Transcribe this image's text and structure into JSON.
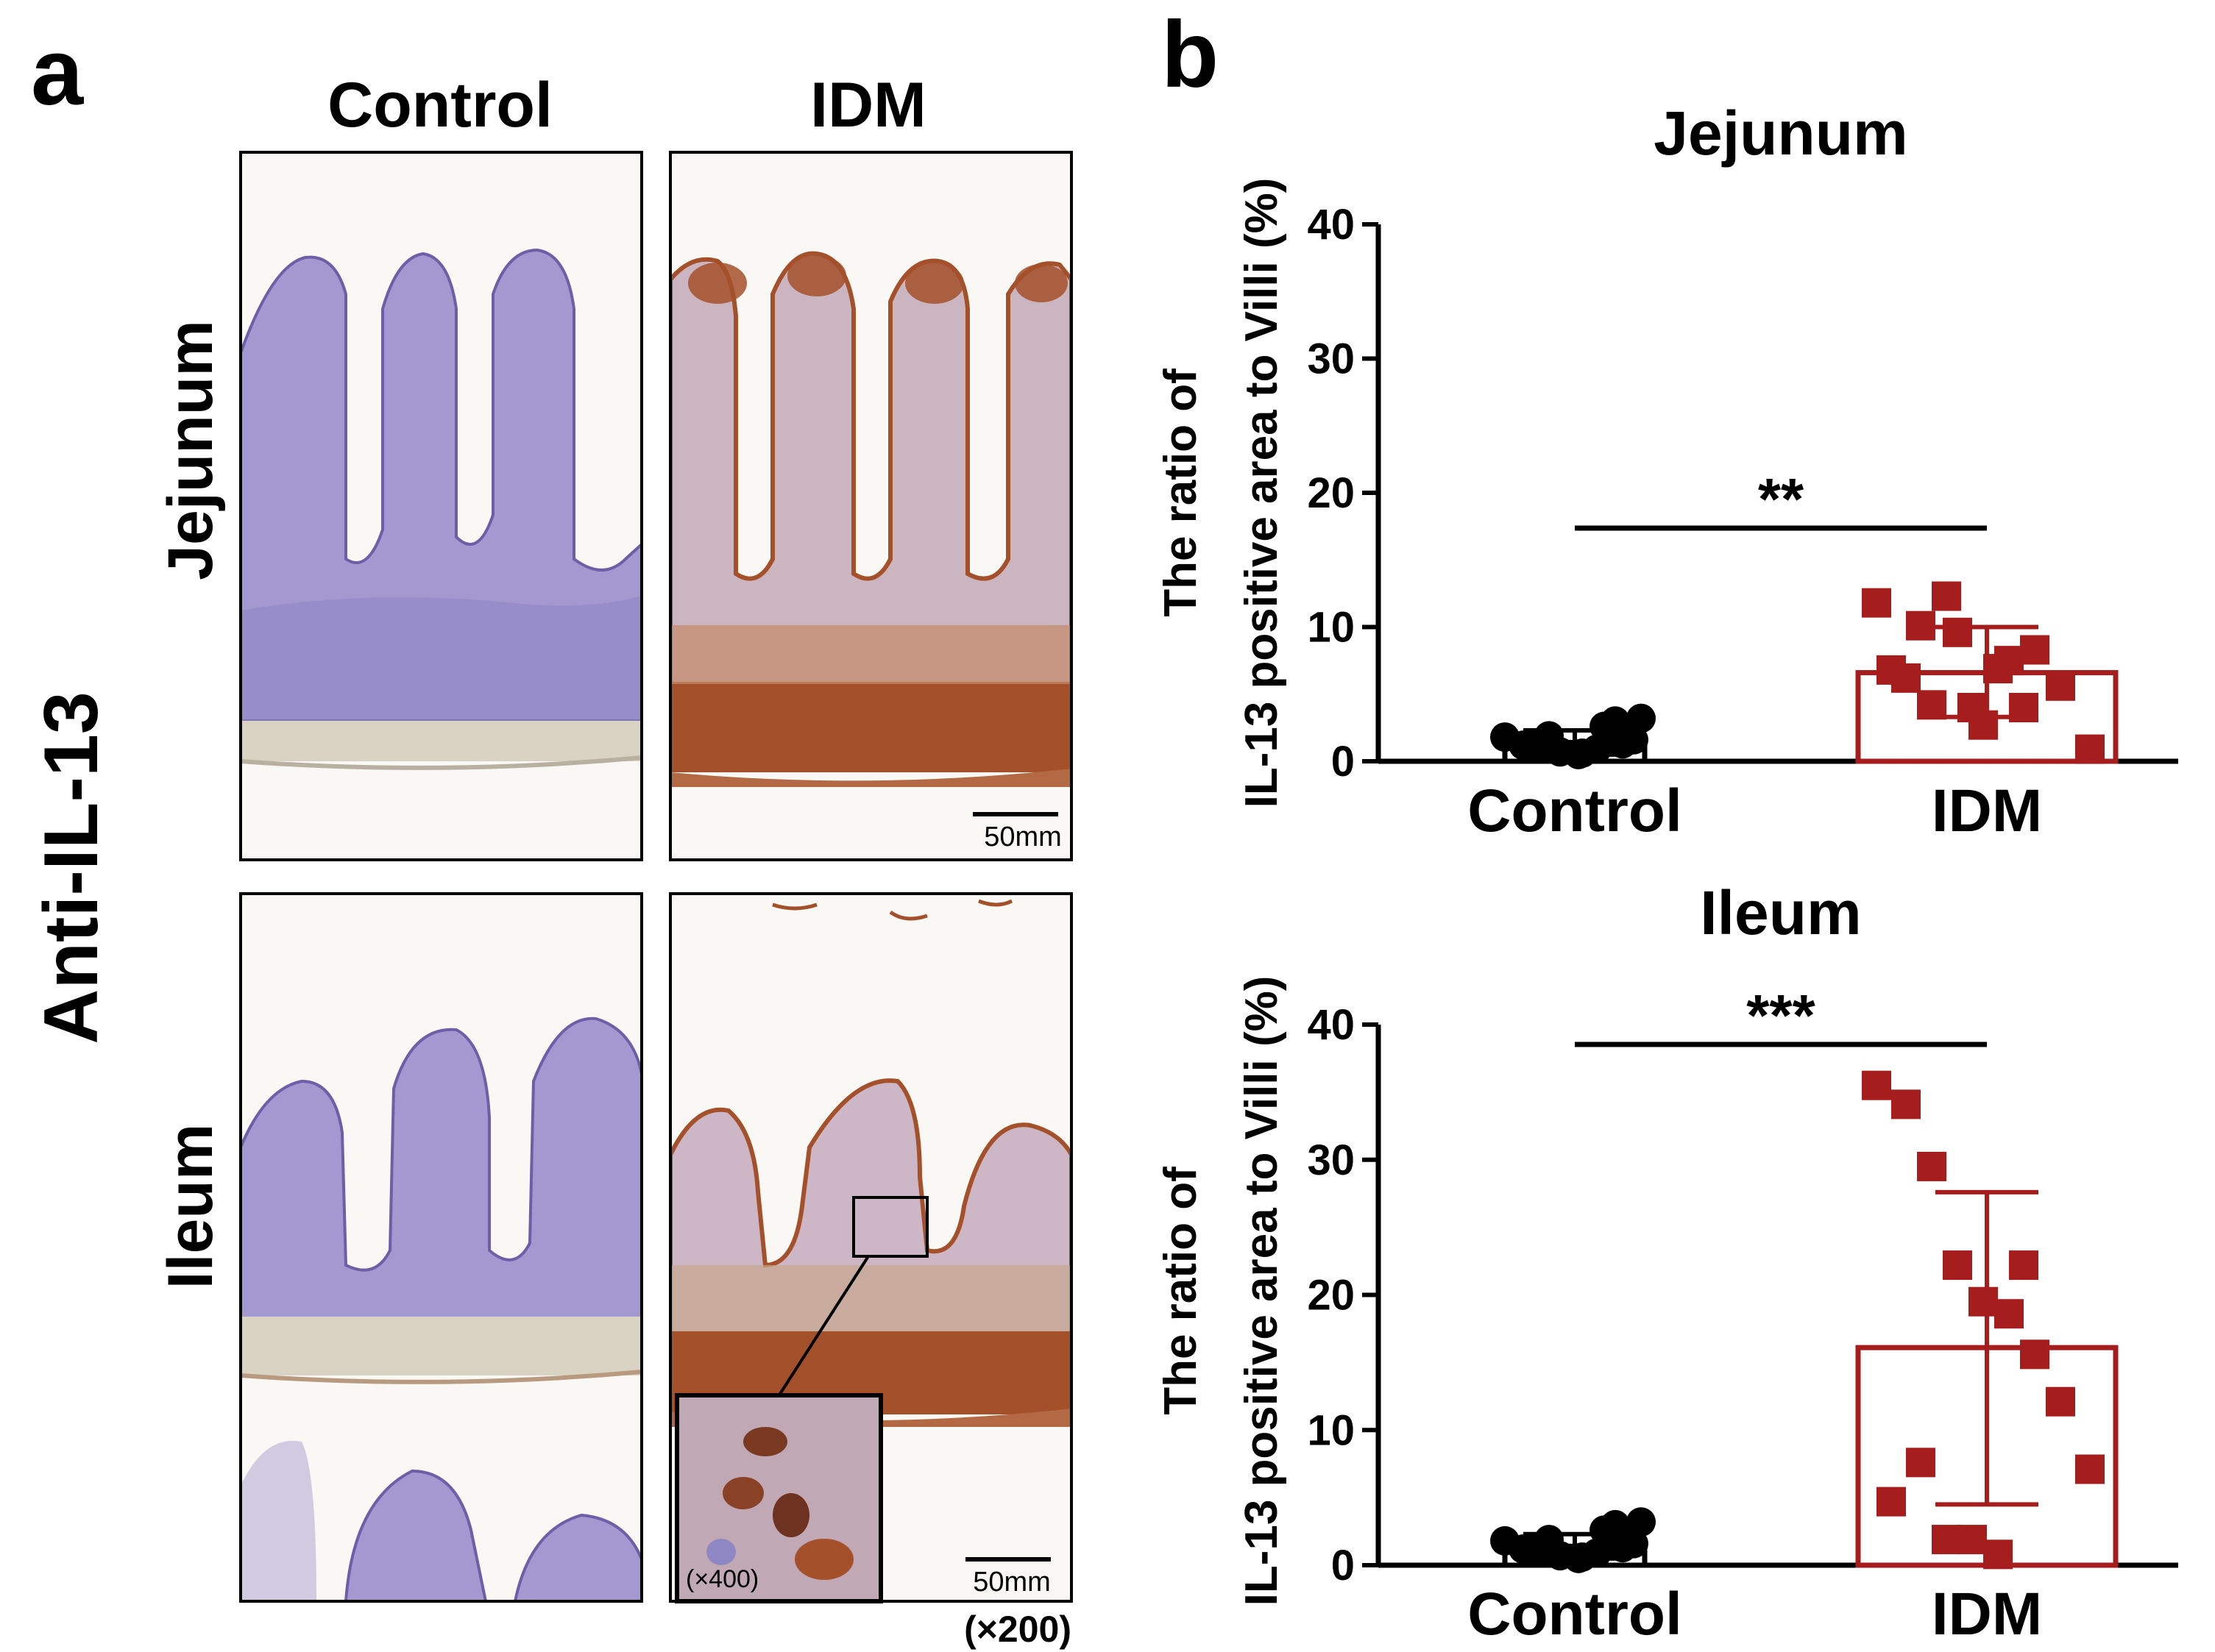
{
  "panels": {
    "a": {
      "letter": "a",
      "col_headers": [
        "Control",
        "IDM"
      ],
      "side_label": "Anti-IL-13",
      "row_labels": [
        "Jejunum",
        "Ileum"
      ],
      "scale_bar_label": "50mm",
      "inset_label": "(×400)",
      "magnification": "(×200)",
      "colors": {
        "background": "#faf8f5",
        "hematoxylin": "#8a7fc0",
        "dab": "#a4502a"
      }
    },
    "b": {
      "letter": "b"
    }
  },
  "chart_data": [
    {
      "type": "scatter",
      "title": "Jejunum",
      "ylabel_line1": "The ratio of",
      "ylabel_line2": "IL-13 positive area to Villi (%)",
      "categories": [
        "Control",
        "IDM"
      ],
      "ylim": [
        0,
        40
      ],
      "yticks": [
        0,
        10,
        20,
        30,
        40
      ],
      "significance": "**",
      "groups": [
        {
          "category": "Control",
          "mean": 1.4,
          "sd_low": 0.5,
          "sd_high": 2.3,
          "color": "#000000",
          "marker": "circle",
          "points": [
            1.8,
            1.2,
            1.0,
            0.7,
            0.5,
            0.9,
            3.0,
            1.6,
            1.1,
            1.9,
            0.6,
            2.6,
            1.3,
            3.2
          ]
        },
        {
          "category": "IDM",
          "mean": 6.6,
          "sd_low": 3.3,
          "sd_high": 10.0,
          "color": "#a61d1d",
          "marker": "square",
          "points": [
            11.8,
            6.2,
            4.2,
            9.6,
            2.7,
            7.5,
            8.3,
            5.6,
            0.9,
            6.8,
            10.1,
            12.3,
            4.0,
            6.9,
            4.0
          ]
        }
      ]
    },
    {
      "type": "scatter",
      "title": "Ileum",
      "ylabel_line1": "The ratio of",
      "ylabel_line2": "IL-13 positive area to Villi (%)",
      "categories": [
        "Control",
        "IDM"
      ],
      "ylim": [
        0,
        40
      ],
      "yticks": [
        0,
        10,
        20,
        30,
        40
      ],
      "significance": "***",
      "groups": [
        {
          "category": "Control",
          "mean": 1.4,
          "sd_low": 0.5,
          "sd_high": 2.3,
          "color": "#000000",
          "marker": "circle",
          "points": [
            1.8,
            1.2,
            1.0,
            0.7,
            0.5,
            0.9,
            3.0,
            1.6,
            1.1,
            1.9,
            0.6,
            2.6,
            1.3,
            3.2
          ]
        },
        {
          "category": "IDM",
          "mean": 16.1,
          "sd_low": 4.5,
          "sd_high": 27.6,
          "color": "#a61d1d",
          "marker": "square",
          "points": [
            35.5,
            34.1,
            29.5,
            22.2,
            19.5,
            18.6,
            15.6,
            12.1,
            7.1,
            4.7,
            7.6,
            1.9,
            1.9,
            0.8,
            22.2
          ]
        }
      ]
    }
  ]
}
